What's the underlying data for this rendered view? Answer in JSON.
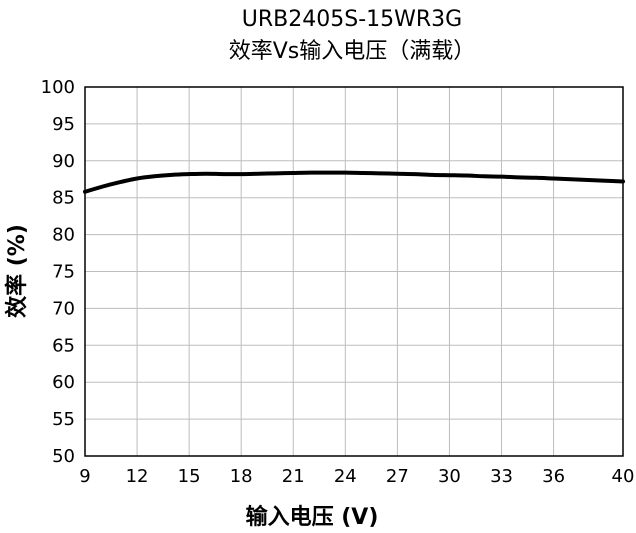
{
  "chart_data": {
    "type": "line",
    "title": "URB2405S-15WR3G",
    "subtitle": "效率Vs输入电压（满载）",
    "xlabel": "输入电压 (V)",
    "ylabel": "效率 (%)",
    "xlim": [
      9,
      40
    ],
    "ylim": [
      50,
      100
    ],
    "xticks": [
      9,
      12,
      15,
      18,
      21,
      24,
      27,
      30,
      33,
      36,
      40
    ],
    "yticks": [
      50,
      55,
      60,
      65,
      70,
      75,
      80,
      85,
      90,
      95,
      100
    ],
    "grid": true,
    "series": [
      {
        "color": "#000000",
        "x": [
          9,
          10,
          11,
          12,
          13,
          14,
          15,
          16,
          17,
          18,
          19,
          20,
          21,
          22,
          23,
          24,
          25,
          26,
          27,
          28,
          29,
          30,
          31,
          32,
          33,
          34,
          35,
          36,
          37,
          38,
          39,
          40
        ],
        "y": [
          85.8,
          86.5,
          87.1,
          87.6,
          87.9,
          88.1,
          88.2,
          88.25,
          88.2,
          88.2,
          88.25,
          88.3,
          88.35,
          88.4,
          88.4,
          88.4,
          88.35,
          88.3,
          88.25,
          88.2,
          88.1,
          88.05,
          88.0,
          87.9,
          87.85,
          87.75,
          87.7,
          87.6,
          87.5,
          87.4,
          87.3,
          87.2
        ]
      }
    ]
  }
}
